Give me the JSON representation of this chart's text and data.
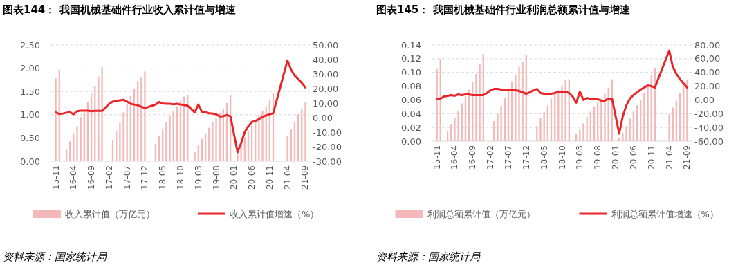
{
  "chart_data": [
    {
      "type": "bar",
      "title": "图表144： 我国机械基础件行业收入累计值与增速",
      "categories": [
        "15-11",
        null,
        null,
        null,
        null,
        "16-04",
        null,
        null,
        null,
        null,
        "16-09",
        null,
        null,
        null,
        null,
        "17-02",
        null,
        null,
        null,
        null,
        "17-07",
        null,
        null,
        null,
        null,
        "17-12",
        null,
        null,
        null,
        null,
        "18-05",
        null,
        null,
        null,
        null,
        "18-10",
        null,
        null,
        null,
        null,
        "19-03",
        null,
        null,
        null,
        null,
        "19-08",
        null,
        null,
        null,
        null,
        "20-01",
        null,
        null,
        null,
        null,
        "20-06",
        null,
        null,
        null,
        null,
        "20-11",
        null,
        null,
        null,
        null,
        "21-04",
        null,
        null,
        null,
        null,
        "21-09"
      ],
      "series": [
        {
          "name": "收入累计值（万亿元）",
          "color": "#f4b8b8",
          "values": [
            1.78,
            1.97,
            null,
            0.25,
            0.43,
            0.6,
            0.75,
            0.95,
            1.05,
            1.27,
            1.45,
            1.62,
            1.82,
            2.02,
            null,
            null,
            0.46,
            0.64,
            0.83,
            1.05,
            1.23,
            1.4,
            1.56,
            1.72,
            1.8,
            1.93,
            null,
            null,
            0.38,
            0.55,
            0.69,
            0.84,
            0.97,
            1.07,
            1.18,
            1.3,
            1.39,
            1.43,
            null,
            0.2,
            0.34,
            0.48,
            0.6,
            0.72,
            0.84,
            0.93,
            1.03,
            1.13,
            1.25,
            1.42,
            null,
            0.22,
            0.38,
            0.52,
            0.65,
            0.77,
            0.88,
            1.0,
            1.08,
            1.17,
            1.31,
            1.47,
            null,
            null,
            null,
            0.55,
            0.68,
            0.85,
            1.01,
            1.13,
            1.28
          ]
        },
        {
          "name": "收入累计值增速（%）",
          "type": "line",
          "axis": "y2",
          "color": "#e8262a",
          "values": [
            3.6,
            2.5,
            2.8,
            3.4,
            3.8,
            2.3,
            4.4,
            4.8,
            4.8,
            4.8,
            4.4,
            4.6,
            4.6,
            4.6,
            7.0,
            9.5,
            11.0,
            11.5,
            11.9,
            12.3,
            11.0,
            9.5,
            9.0,
            8.5,
            7.5,
            6.6,
            7.3,
            8.2,
            9.0,
            10.7,
            9.8,
            9.5,
            9.5,
            9.2,
            9.5,
            9.0,
            8.7,
            8.2,
            6.0,
            3.5,
            9.0,
            4.0,
            3.8,
            3.0,
            2.8,
            2.3,
            0.8,
            1.0,
            1.8,
            0.9,
            null,
            -23.8,
            -17.5,
            -10.0,
            -6.0,
            -3.0,
            -2.3,
            -1.0,
            0.5,
            1.5,
            2.3,
            3.0,
            null,
            null,
            null,
            39.4,
            33.0,
            29.0,
            26.5,
            24.0,
            20.8
          ]
        }
      ],
      "ylim": [
        0,
        2.5
      ],
      "yticks": [
        {
          "value": 0,
          "label": "0.00"
        },
        {
          "value": 0.5,
          "label": "0.50"
        },
        {
          "value": 1,
          "label": "1.00"
        },
        {
          "value": 1.5,
          "label": "1.50"
        },
        {
          "value": 2,
          "label": "2.00"
        },
        {
          "value": 2.5,
          "label": "2.50"
        }
      ],
      "y2lim": [
        -30,
        50
      ],
      "y2ticks": [
        {
          "value": -30,
          "label": "-30.00"
        },
        {
          "value": -20,
          "label": "-20.00"
        },
        {
          "value": -10,
          "label": "-10.00"
        },
        {
          "value": 0,
          "label": "0.00"
        },
        {
          "value": 10,
          "label": "10.00"
        },
        {
          "value": 20,
          "label": "20.00"
        },
        {
          "value": 30,
          "label": "30.00"
        },
        {
          "value": 40,
          "label": "40.00"
        },
        {
          "value": 50,
          "label": "50.00"
        }
      ],
      "grid": "y",
      "legend": "bottom",
      "annotations": [
        "资料来源：国家统计局"
      ]
    },
    {
      "type": "bar",
      "title": "图表145： 我国机械基础件行业利润总额累计值与增速",
      "categories": [
        "15-11",
        null,
        null,
        null,
        null,
        "16-04",
        null,
        null,
        null,
        null,
        "16-09",
        null,
        null,
        null,
        null,
        "17-02",
        null,
        null,
        null,
        null,
        "17-07",
        null,
        null,
        null,
        null,
        "17-12",
        null,
        null,
        null,
        null,
        "18-05",
        null,
        null,
        null,
        null,
        "18-10",
        null,
        null,
        null,
        null,
        "19-03",
        null,
        null,
        null,
        null,
        "19-08",
        null,
        null,
        null,
        null,
        "20-01",
        null,
        null,
        null,
        null,
        "20-06",
        null,
        null,
        null,
        null,
        "20-11",
        null,
        null,
        null,
        null,
        "21-04",
        null,
        null,
        null,
        null,
        "21-09"
      ],
      "series": [
        {
          "name": "利润总额累计值（万亿元）",
          "color": "#f4b8b8",
          "values": [
            0.105,
            0.12,
            null,
            0.015,
            0.025,
            0.034,
            0.044,
            0.055,
            0.065,
            0.075,
            0.086,
            0.098,
            0.112,
            0.127,
            null,
            null,
            0.029,
            0.04,
            0.051,
            0.063,
            0.075,
            0.087,
            0.096,
            0.108,
            0.115,
            0.126,
            null,
            null,
            0.022,
            0.033,
            0.042,
            0.052,
            0.062,
            0.069,
            0.074,
            0.081,
            0.089,
            0.09,
            null,
            0.01,
            0.017,
            0.026,
            0.035,
            0.043,
            0.05,
            0.056,
            0.062,
            0.069,
            0.078,
            0.09,
            null,
            0.004,
            0.012,
            0.022,
            0.033,
            0.043,
            0.052,
            0.06,
            0.07,
            0.08,
            0.096,
            0.106,
            null,
            null,
            null,
            0.039,
            0.049,
            0.059,
            0.07,
            0.08,
            0.089
          ]
        },
        {
          "name": "利润总额累计值增速（%）",
          "type": "line",
          "axis": "y2",
          "color": "#e8262a",
          "values": [
            2,
            2,
            5,
            6,
            7,
            6,
            8,
            7,
            8,
            8,
            7,
            7,
            7,
            7,
            10,
            14,
            16,
            16,
            15,
            15,
            14,
            14,
            14,
            13,
            11,
            9,
            11,
            14,
            16,
            10,
            9,
            8,
            9,
            10,
            12,
            11,
            12,
            10,
            5,
            -4,
            12,
            0,
            3,
            1,
            1,
            1,
            -1,
            -1,
            2,
            2,
            null,
            -49,
            -24,
            -8,
            2,
            7,
            11,
            15,
            18,
            21,
            20,
            18,
            null,
            null,
            null,
            72,
            48,
            38,
            30,
            24,
            18
          ]
        }
      ],
      "ylim": [
        0,
        0.14
      ],
      "yticks": [
        {
          "value": 0,
          "label": "0.00"
        },
        {
          "value": 0.02,
          "label": "0.02"
        },
        {
          "value": 0.04,
          "label": "0.04"
        },
        {
          "value": 0.06,
          "label": "0.06"
        },
        {
          "value": 0.08,
          "label": "0.08"
        },
        {
          "value": 0.1,
          "label": "0.10"
        },
        {
          "value": 0.12,
          "label": "0.12"
        },
        {
          "value": 0.14,
          "label": "0.14"
        }
      ],
      "y2lim": [
        -60,
        80
      ],
      "y2ticks": [
        {
          "value": -60,
          "label": "-60.00"
        },
        {
          "value": -40,
          "label": "-40.00"
        },
        {
          "value": -20,
          "label": "-20.00"
        },
        {
          "value": 0,
          "label": "0.00"
        },
        {
          "value": 20,
          "label": "20.00"
        },
        {
          "value": 40,
          "label": "40.00"
        },
        {
          "value": 60,
          "label": "60.00"
        },
        {
          "value": 80,
          "label": "80.00"
        }
      ],
      "grid": "y",
      "legend": "bottom",
      "annotations": [
        "资料来源：国家统计局"
      ]
    }
  ]
}
